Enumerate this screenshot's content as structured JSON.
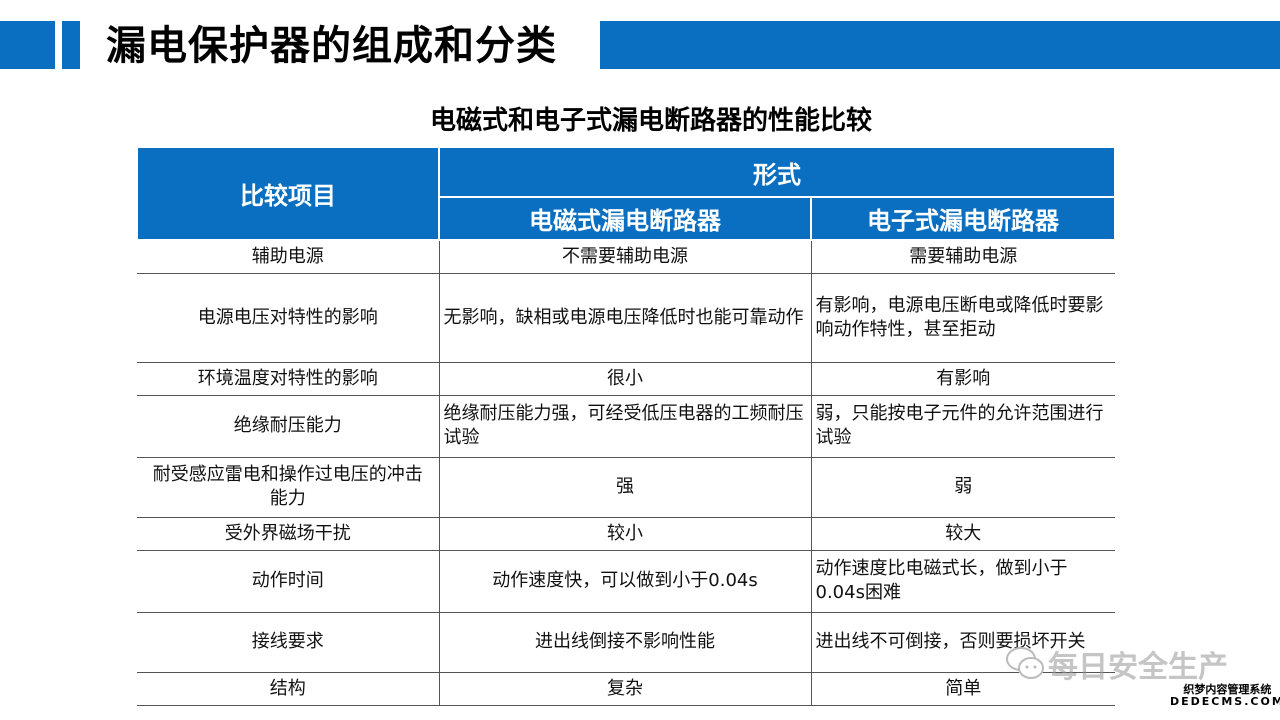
{
  "header": {
    "title": "漏电保护器的组成和分类",
    "accent_color": "#0b6fc1"
  },
  "subtitle": "电磁式和电子式漏电断路器的性能比较",
  "table": {
    "col_item": "比较项目",
    "group": "形式",
    "col_a": "电磁式漏电断路器",
    "col_b": "电子式漏电断路器",
    "rows": [
      {
        "item": "辅助电源",
        "a": "不需要辅助电源",
        "b": "需要辅助电源"
      },
      {
        "item": "电源电压对特性的影响",
        "a": "无影响，缺相或电源电压降低时也能可靠动作",
        "b": "有影响，电源电压断电或降低时要影响动作特性，甚至拒动"
      },
      {
        "item": "环境温度对特性的影响",
        "a": "很小",
        "b": "有影响"
      },
      {
        "item": "绝缘耐压能力",
        "a": "绝缘耐压能力强，可经受低压电器的工频耐压试验",
        "b": "弱，只能按电子元件的允许范围进行试验"
      },
      {
        "item": "耐受感应雷电和操作过电压的冲击能力",
        "a": "强",
        "b": "弱"
      },
      {
        "item": "受外界磁场干扰",
        "a": "较小",
        "b": "较大"
      },
      {
        "item": "动作时间",
        "a": "动作速度快，可以做到小于0.04s",
        "b": "动作速度比电磁式长，做到小于0.04s困难"
      },
      {
        "item": "接线要求",
        "a": "进出线倒接不影响性能",
        "b": "进出线不可倒接，否则要损坏开关"
      },
      {
        "item": "结构",
        "a": "复杂",
        "b": "简单"
      }
    ]
  },
  "watermark": {
    "text": "每日安全生产",
    "icon": "wechat-icon",
    "site_cn": "织梦内容管理系统",
    "site_en": "DEDECMS.COM"
  }
}
